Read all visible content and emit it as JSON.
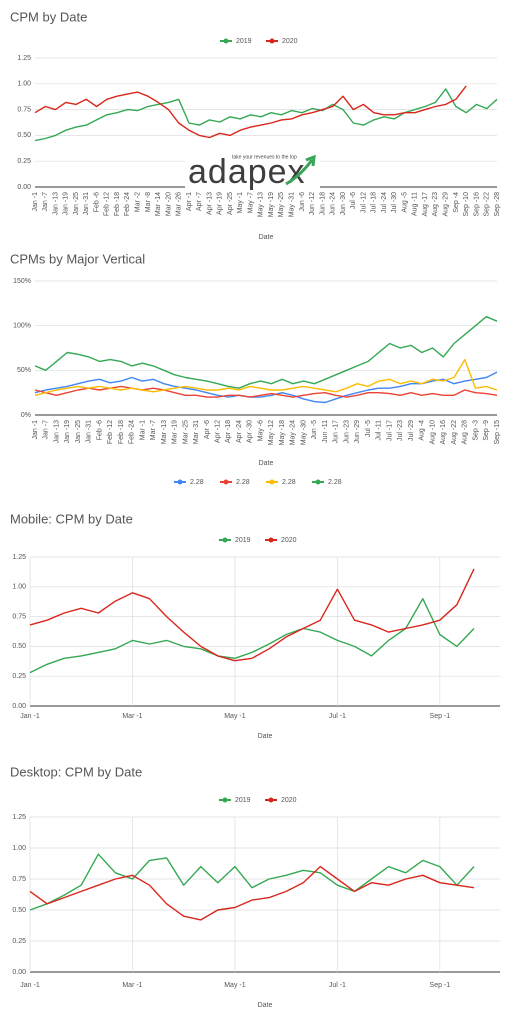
{
  "chart_data": [
    {
      "type": "line",
      "title": "CPM by Date",
      "x_label": "Date",
      "legend": "top",
      "grid": true,
      "xgrid": false,
      "annotations": [
        "adapex",
        "take your revenues to the top"
      ],
      "categories": [
        "Jan -1",
        "Jan -7",
        "Jan -13",
        "Jan -19",
        "Jan -25",
        "Jan -31",
        "Feb -6",
        "Feb -12",
        "Feb -18",
        "Feb -24",
        "Mar -2",
        "Mar -8",
        "Mar -14",
        "Mar -20",
        "Mar -26",
        "Apr -1",
        "Apr -7",
        "Apr -13",
        "Apr -19",
        "Apr -25",
        "May -1",
        "May -7",
        "May -13",
        "May -19",
        "May -25",
        "May -31",
        "Jun -6",
        "Jun -12",
        "Jun -18",
        "Jun -24",
        "Jun -30",
        "Jul -6",
        "Jul -12",
        "Jul -18",
        "Jul -24",
        "Jul -30",
        "Aug -5",
        "Aug -11",
        "Aug -17",
        "Aug -23",
        "Aug -29",
        "Sep -4",
        "Sep -10",
        "Sep -16",
        "Sep -22",
        "Sep -28"
      ],
      "series": [
        {
          "name": "2019",
          "color": "#34a853",
          "values": [
            0.45,
            0.47,
            0.5,
            0.55,
            0.58,
            0.6,
            0.65,
            0.7,
            0.72,
            0.75,
            0.74,
            0.78,
            0.8,
            0.82,
            0.85,
            0.62,
            0.6,
            0.65,
            0.63,
            0.68,
            0.66,
            0.7,
            0.68,
            0.72,
            0.7,
            0.74,
            0.72,
            0.76,
            0.74,
            0.8,
            0.75,
            0.62,
            0.6,
            0.65,
            0.68,
            0.66,
            0.72,
            0.75,
            0.78,
            0.82,
            0.95,
            0.78,
            0.72,
            0.8,
            0.76,
            0.85
          ]
        },
        {
          "name": "2020",
          "color": "#d9261c",
          "values": [
            0.72,
            0.78,
            0.75,
            0.82,
            0.8,
            0.85,
            0.78,
            0.85,
            0.88,
            0.9,
            0.92,
            0.88,
            0.82,
            0.75,
            0.62,
            0.55,
            0.5,
            0.48,
            0.52,
            0.5,
            0.55,
            0.58,
            0.6,
            0.62,
            0.65,
            0.66,
            0.7,
            0.72,
            0.75,
            0.78,
            0.88,
            0.75,
            0.8,
            0.72,
            0.7,
            0.7,
            0.72,
            0.72,
            0.75,
            0.78,
            0.8,
            0.85,
            0.98,
            null,
            null,
            null
          ]
        }
      ],
      "ylim": [
        0,
        1.25
      ],
      "yticks": [
        {
          "value": 0,
          "label": "0.00"
        },
        {
          "value": 0.25,
          "label": "0.25"
        },
        {
          "value": 0.5,
          "label": "0.50"
        },
        {
          "value": 0.75,
          "label": "0.75"
        },
        {
          "value": 1,
          "label": "1.00"
        },
        {
          "value": 1.25,
          "label": "1.25"
        }
      ]
    },
    {
      "type": "line",
      "title": "CPMs by Major Vertical",
      "x_label": "Date",
      "legend": "bottom",
      "grid": true,
      "xgrid": false,
      "categories": [
        "Jan -1",
        "Jan -7",
        "Jan -13",
        "Jan -19",
        "Jan -25",
        "Jan -31",
        "Feb -6",
        "Feb -12",
        "Feb -18",
        "Feb -24",
        "Mar -1",
        "Mar -7",
        "Mar -13",
        "Mar -19",
        "Mar -25",
        "Mar -31",
        "Apr -6",
        "Apr -12",
        "Apr -18",
        "Apr -24",
        "Apr -30",
        "May -6",
        "May -12",
        "May -18",
        "May -24",
        "May -30",
        "Jun -5",
        "Jun -11",
        "Jun -17",
        "Jun -23",
        "Jun -29",
        "Jul -5",
        "Jul -11",
        "Jul -17",
        "Jul -23",
        "Jul -29",
        "Aug -4",
        "Aug -10",
        "Aug -16",
        "Aug -22",
        "Aug -28",
        "Sep -3",
        "Sep -9",
        "Sep -15"
      ],
      "series": [
        {
          "name": "2.28",
          "color": "#4285f4",
          "values": [
            25,
            28,
            30,
            32,
            35,
            38,
            40,
            36,
            38,
            42,
            38,
            40,
            35,
            32,
            30,
            28,
            25,
            22,
            20,
            22,
            20,
            20,
            22,
            25,
            22,
            18,
            15,
            14,
            18,
            22,
            25,
            28,
            30,
            30,
            32,
            35,
            35,
            38,
            40,
            35,
            38,
            40,
            42,
            48
          ]
        },
        {
          "name": "2.28",
          "color": "#ea4335",
          "values": [
            28,
            25,
            22,
            25,
            28,
            30,
            28,
            30,
            32,
            30,
            28,
            30,
            28,
            25,
            22,
            22,
            20,
            20,
            22,
            22,
            20,
            22,
            24,
            22,
            20,
            22,
            24,
            25,
            22,
            20,
            22,
            25,
            25,
            24,
            22,
            25,
            22,
            24,
            22,
            22,
            28,
            25,
            24,
            22
          ]
        },
        {
          "name": "2.28",
          "color": "#fbbc04",
          "values": [
            22,
            25,
            28,
            30,
            32,
            30,
            32,
            30,
            28,
            30,
            28,
            26,
            28,
            30,
            32,
            30,
            28,
            28,
            30,
            28,
            32,
            30,
            28,
            28,
            30,
            32,
            30,
            28,
            26,
            30,
            35,
            32,
            38,
            40,
            35,
            38,
            35,
            40,
            38,
            42,
            62,
            30,
            32,
            28
          ]
        },
        {
          "name": "2.28",
          "color": "#34a853",
          "values": [
            55,
            50,
            60,
            70,
            68,
            65,
            60,
            62,
            60,
            55,
            58,
            55,
            50,
            45,
            42,
            40,
            38,
            35,
            32,
            30,
            35,
            38,
            35,
            40,
            35,
            38,
            35,
            40,
            45,
            50,
            55,
            60,
            70,
            80,
            75,
            78,
            70,
            75,
            65,
            80,
            90,
            100,
            110,
            105
          ]
        }
      ],
      "ylim": [
        0,
        150
      ],
      "yticks": [
        {
          "value": 0,
          "label": "0%"
        },
        {
          "value": 50,
          "label": "50%"
        },
        {
          "value": 100,
          "label": "100%"
        },
        {
          "value": 150,
          "label": "150%"
        }
      ]
    },
    {
      "type": "line",
      "title": "Mobile: CPM by Date",
      "x_label": "Date",
      "legend": "top",
      "grid": true,
      "xgrid": true,
      "categories": [
        "Jan -1",
        null,
        null,
        null,
        null,
        null,
        "Mar -1",
        null,
        null,
        null,
        null,
        null,
        "May -1",
        null,
        null,
        null,
        null,
        null,
        "Jul -1",
        null,
        null,
        null,
        null,
        null,
        "Sep -1",
        null,
        null
      ],
      "series": [
        {
          "name": "2019",
          "color": "#34a853",
          "values": [
            0.28,
            0.35,
            0.4,
            0.42,
            0.45,
            0.48,
            0.55,
            0.52,
            0.55,
            0.5,
            0.48,
            0.42,
            0.4,
            0.45,
            0.52,
            0.6,
            0.65,
            0.62,
            0.55,
            0.5,
            0.42,
            0.55,
            0.65,
            0.9,
            0.6,
            0.5,
            0.65
          ]
        },
        {
          "name": "2020",
          "color": "#d9261c",
          "values": [
            0.68,
            0.72,
            0.78,
            0.82,
            0.78,
            0.88,
            0.95,
            0.9,
            0.75,
            0.62,
            0.5,
            0.42,
            0.38,
            0.4,
            0.48,
            0.58,
            0.65,
            0.72,
            0.98,
            0.72,
            0.68,
            0.62,
            0.65,
            0.68,
            0.72,
            0.85,
            1.15
          ]
        }
      ],
      "ylim": [
        0,
        1.25
      ],
      "yticks": [
        {
          "value": 0,
          "label": "0.00"
        },
        {
          "value": 0.25,
          "label": "0.25"
        },
        {
          "value": 0.5,
          "label": "0.50"
        },
        {
          "value": 0.75,
          "label": "0.75"
        },
        {
          "value": 1,
          "label": "1.00"
        },
        {
          "value": 1.25,
          "label": "1.25"
        }
      ]
    },
    {
      "type": "line",
      "title": "Desktop: CPM by Date",
      "x_label": "Date",
      "legend": "top",
      "grid": true,
      "xgrid": true,
      "categories": [
        "Jan -1",
        null,
        null,
        null,
        null,
        null,
        "Mar -1",
        null,
        null,
        null,
        null,
        null,
        "May -1",
        null,
        null,
        null,
        null,
        null,
        "Jul -1",
        null,
        null,
        null,
        null,
        null,
        "Sep -1",
        null,
        null
      ],
      "series": [
        {
          "name": "2019",
          "color": "#34a853",
          "values": [
            0.5,
            0.55,
            0.62,
            0.7,
            0.95,
            0.8,
            0.75,
            0.9,
            0.92,
            0.7,
            0.85,
            0.72,
            0.85,
            0.68,
            0.75,
            0.78,
            0.82,
            0.8,
            0.7,
            0.65,
            0.75,
            0.85,
            0.8,
            0.9,
            0.85,
            0.7,
            0.85
          ]
        },
        {
          "name": "2020",
          "color": "#d9261c",
          "values": [
            0.65,
            0.55,
            0.6,
            0.65,
            0.7,
            0.75,
            0.78,
            0.7,
            0.55,
            0.45,
            0.42,
            0.5,
            0.52,
            0.58,
            0.6,
            0.65,
            0.72,
            0.85,
            0.75,
            0.65,
            0.72,
            0.7,
            0.75,
            0.78,
            0.72,
            0.7,
            0.68
          ]
        }
      ],
      "ylim": [
        0,
        1.25
      ],
      "yticks": [
        {
          "value": 0,
          "label": "0.00"
        },
        {
          "value": 0.25,
          "label": "0.25"
        },
        {
          "value": 0.5,
          "label": "0.50"
        },
        {
          "value": 0.75,
          "label": "0.75"
        },
        {
          "value": 1,
          "label": "1.00"
        },
        {
          "value": 1.25,
          "label": "1.25"
        }
      ]
    }
  ]
}
